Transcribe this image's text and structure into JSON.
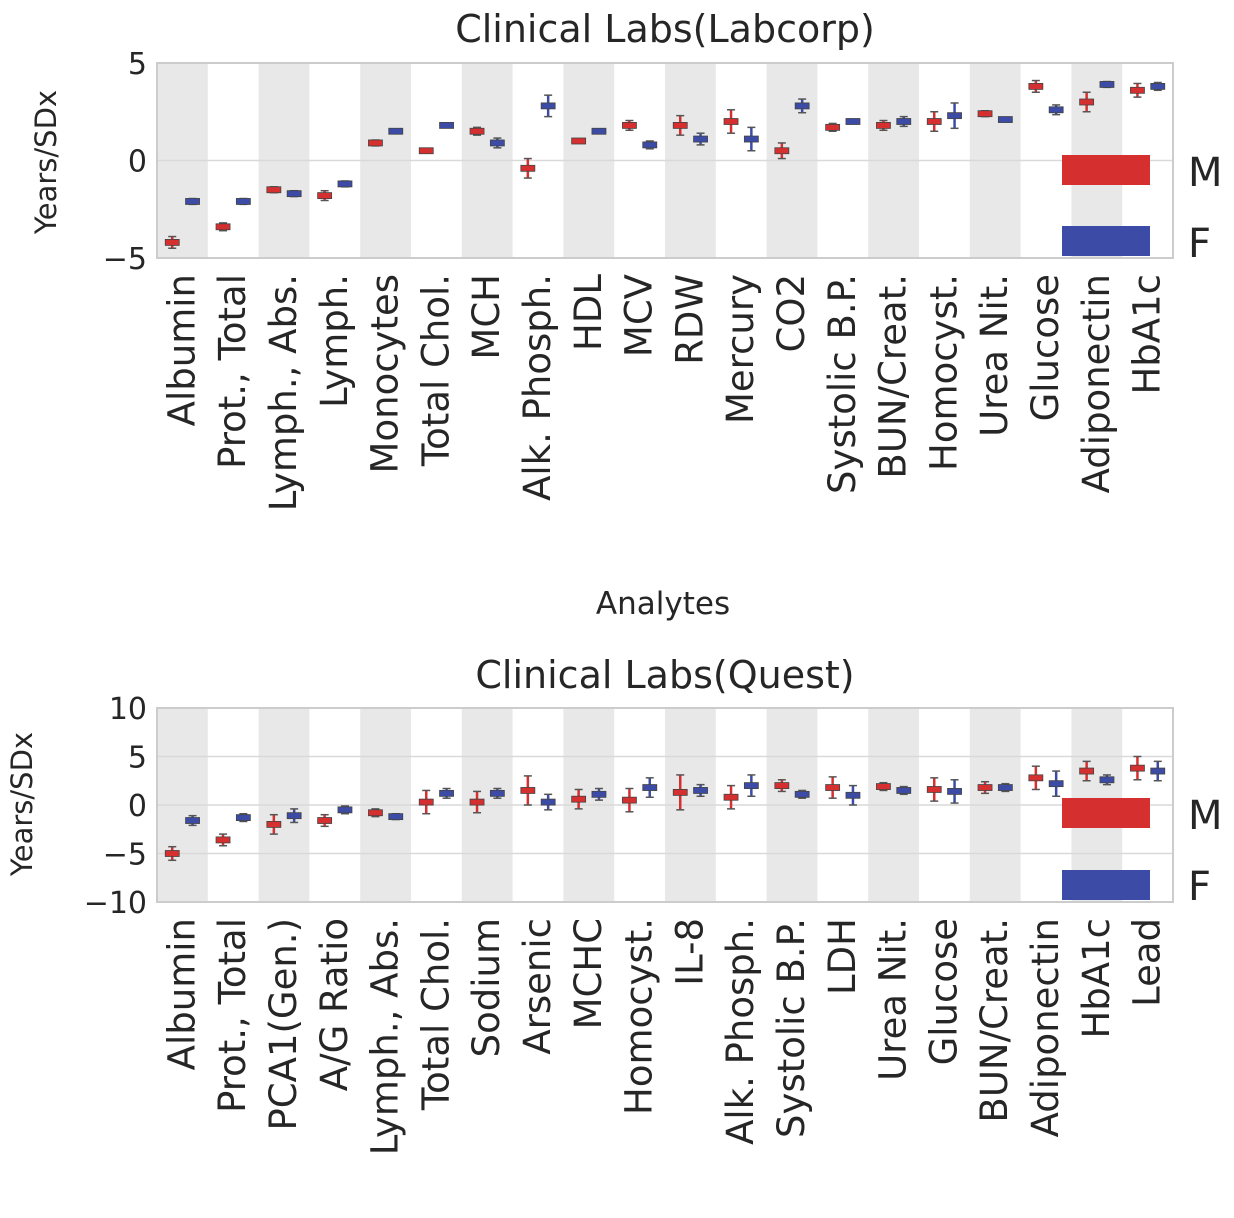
{
  "chart_data": [
    {
      "type": "errorbar",
      "title": "Clinical Labs(Labcorp)",
      "xlabel": "Analytes",
      "ylabel": "Years/SDx",
      "ylim": [
        -5,
        5
      ],
      "yticks": [
        5,
        0,
        -5
      ],
      "ytick_labels": [
        "5",
        "0",
        "−5"
      ],
      "legend": {
        "position": "right",
        "entries": [
          {
            "label": "M",
            "color": "#d62f2f"
          },
          {
            "label": "F",
            "color": "#3b4ba6"
          }
        ]
      },
      "categories": [
        "Albumin",
        "Prot., Total",
        "Lymph., Abs.",
        "Lymph.",
        "Monocytes",
        "Total Chol.",
        "MCH",
        "Alk. Phosph.",
        "HDL",
        "MCV",
        "RDW",
        "Mercury",
        "CO2",
        "Systolic B.P.",
        "BUN/Creat.",
        "Homocyst.",
        "Urea Nit.",
        "Glucose",
        "Adiponectin",
        "HbA1c"
      ],
      "series": [
        {
          "name": "M",
          "color": "#d62f2f",
          "values": [
            -4.2,
            -3.4,
            -1.5,
            -1.8,
            0.9,
            0.5,
            1.5,
            -0.4,
            1.0,
            1.8,
            1.8,
            2.0,
            0.5,
            1.7,
            1.8,
            2.0,
            2.4,
            3.8,
            3.0,
            3.6
          ],
          "errors": [
            0.3,
            0.2,
            0.15,
            0.25,
            0.15,
            0.1,
            0.2,
            0.5,
            0.12,
            0.25,
            0.5,
            0.6,
            0.4,
            0.2,
            0.25,
            0.5,
            0.15,
            0.3,
            0.5,
            0.35
          ]
        },
        {
          "name": "F",
          "color": "#3b4ba6",
          "values": [
            -2.1,
            -2.1,
            -1.7,
            -1.2,
            1.5,
            1.8,
            0.9,
            2.8,
            1.5,
            0.8,
            1.1,
            1.1,
            2.8,
            2.0,
            2.0,
            2.3,
            2.1,
            2.6,
            3.9,
            3.8
          ],
          "errors": [
            0.15,
            0.15,
            0.15,
            0.15,
            0.12,
            0.12,
            0.25,
            0.55,
            0.12,
            0.2,
            0.3,
            0.6,
            0.35,
            0.12,
            0.25,
            0.65,
            0.12,
            0.25,
            0.15,
            0.2
          ]
        }
      ]
    },
    {
      "type": "errorbar",
      "title": "Clinical Labs(Quest)",
      "xlabel": "",
      "ylabel": "Years/SDx",
      "ylim": [
        -10,
        10
      ],
      "yticks": [
        10,
        5,
        0,
        -5,
        -10
      ],
      "ytick_labels": [
        "10",
        "5",
        "0",
        "−5",
        "−10"
      ],
      "legend": {
        "position": "right",
        "entries": [
          {
            "label": "M",
            "color": "#d62f2f"
          },
          {
            "label": "F",
            "color": "#3b4ba6"
          }
        ]
      },
      "categories": [
        "Albumin",
        "Prot., Total",
        "PCA1(Gen.)",
        "A/G Ratio",
        "Lymph., Abs.",
        "Total Chol.",
        "Sodium",
        "Arsenic",
        "MCHC",
        "Homocyst.",
        "IL-8",
        "Alk. Phosph.",
        "Systolic B.P.",
        "LDH",
        "Urea Nit.",
        "Glucose",
        "BUN/Creat.",
        "Adiponectin",
        "HbA1c",
        "Lead"
      ],
      "series": [
        {
          "name": "M",
          "color": "#d62f2f",
          "values": [
            -5.0,
            -3.6,
            -2.0,
            -1.6,
            -0.8,
            0.3,
            0.3,
            1.5,
            0.6,
            0.5,
            1.3,
            0.8,
            2.0,
            1.8,
            1.9,
            1.6,
            1.8,
            2.8,
            3.5,
            3.8
          ],
          "errors": [
            0.7,
            0.6,
            1.0,
            0.6,
            0.4,
            1.2,
            1.1,
            1.5,
            1.0,
            1.2,
            1.8,
            1.2,
            0.6,
            1.1,
            0.4,
            1.2,
            0.6,
            1.2,
            1.0,
            1.2
          ]
        },
        {
          "name": "F",
          "color": "#3b4ba6",
          "values": [
            -1.6,
            -1.3,
            -1.1,
            -0.5,
            -1.2,
            1.2,
            1.2,
            0.3,
            1.1,
            1.8,
            1.5,
            2.0,
            1.1,
            1.0,
            1.5,
            1.4,
            1.8,
            2.2,
            2.6,
            3.5
          ],
          "errors": [
            0.5,
            0.4,
            0.7,
            0.4,
            0.3,
            0.5,
            0.5,
            0.8,
            0.6,
            1.0,
            0.6,
            1.1,
            0.4,
            1.0,
            0.4,
            1.2,
            0.4,
            1.3,
            0.5,
            1.0
          ]
        }
      ]
    }
  ]
}
